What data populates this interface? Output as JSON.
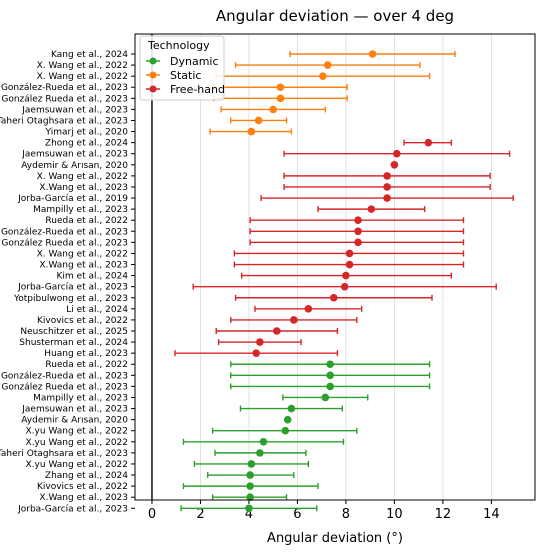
{
  "chart_data": {
    "type": "forest",
    "title": "Angular deviation — over 4 deg",
    "xlabel": "Angular deviation (°)",
    "ylabel": "",
    "xlim": [
      -0.7,
      15.8
    ],
    "xticks": [
      0,
      2,
      4,
      6,
      8,
      10,
      12,
      14
    ],
    "grid": "vertical",
    "reference_line_x": 0,
    "legend": {
      "title": "Technology",
      "placement": "top-left",
      "entries": [
        {
          "name": "Dynamic",
          "color": "#2ca02c"
        },
        {
          "name": "Static",
          "color": "#ff7f0e"
        },
        {
          "name": "Free-hand",
          "color": "#d62728"
        }
      ]
    },
    "series": [
      {
        "name": "Static",
        "color": "#ff7f0e",
        "points": [
          {
            "label": "Kang et al., 2024",
            "value": 9.1,
            "low": 5.7,
            "high": 12.5
          },
          {
            "label": "X. Wang et al., 2022",
            "value": 7.25,
            "low": 3.45,
            "high": 11.05
          },
          {
            "label": "X. Wang et al., 2022",
            "value": 7.05,
            "low": 2.65,
            "high": 11.45
          },
          {
            "label": "González-Rueda et al., 2023",
            "value": 5.3,
            "low": 2.55,
            "high": 8.05
          },
          {
            "label": "González Rueda et al., 2023",
            "value": 5.3,
            "low": 2.55,
            "high": 8.05
          },
          {
            "label": "Jaemsuwan et al., 2023",
            "value": 5.0,
            "low": 2.85,
            "high": 7.15
          },
          {
            "label": "Taheri Otaghsara et al., 2023",
            "value": 4.4,
            "low": 3.25,
            "high": 5.55
          },
          {
            "label": "Yimarj et al., 2020",
            "value": 4.1,
            "low": 2.4,
            "high": 5.75
          }
        ]
      },
      {
        "name": "Free-hand",
        "color": "#d62728",
        "points": [
          {
            "label": "Zhong et al., 2024",
            "value": 11.4,
            "low": 10.4,
            "high": 12.35
          },
          {
            "label": "Jaemsuwan et al., 2023",
            "value": 10.1,
            "low": 5.45,
            "high": 14.75
          },
          {
            "label": "Aydemir & Arısan, 2020",
            "value": 10.0,
            "low": 10.0,
            "high": 10.0
          },
          {
            "label": "X. Wang et al., 2022",
            "value": 9.7,
            "low": 5.45,
            "high": 13.95
          },
          {
            "label": "X.Wang et al., 2023",
            "value": 9.7,
            "low": 5.45,
            "high": 13.95
          },
          {
            "label": "Jorba-García et al., 2019",
            "value": 9.7,
            "low": 4.5,
            "high": 14.9
          },
          {
            "label": "Mampilly et al., 2023",
            "value": 9.05,
            "low": 6.85,
            "high": 11.25
          },
          {
            "label": "Rueda et al., 2022",
            "value": 8.5,
            "low": 4.05,
            "high": 12.85
          },
          {
            "label": "González-Rueda et al., 2023",
            "value": 8.5,
            "low": 4.05,
            "high": 12.85
          },
          {
            "label": "González Rueda et al., 2023",
            "value": 8.5,
            "low": 4.05,
            "high": 12.85
          },
          {
            "label": "X. Wang et al., 2022",
            "value": 8.15,
            "low": 3.4,
            "high": 12.85
          },
          {
            "label": "X.Wang et al., 2023",
            "value": 8.15,
            "low": 3.4,
            "high": 12.85
          },
          {
            "label": "Kim et al., 2024",
            "value": 8.0,
            "low": 3.7,
            "high": 12.35
          },
          {
            "label": "Jorba-García et al., 2023",
            "value": 7.95,
            "low": 1.7,
            "high": 14.2
          },
          {
            "label": "Yotpibulwong et al., 2023",
            "value": 7.5,
            "low": 3.45,
            "high": 11.55
          },
          {
            "label": "Li et al., 2024",
            "value": 6.45,
            "low": 4.25,
            "high": 8.65
          },
          {
            "label": "Kivovics et al., 2022",
            "value": 5.85,
            "low": 3.25,
            "high": 8.45
          },
          {
            "label": "Neuschitzer et al., 2025",
            "value": 5.15,
            "low": 2.65,
            "high": 7.65
          },
          {
            "label": "Shusterman et al., 2024",
            "value": 4.45,
            "low": 2.75,
            "high": 6.15
          },
          {
            "label": "Huang et al., 2023",
            "value": 4.3,
            "low": 0.95,
            "high": 7.65
          }
        ]
      },
      {
        "name": "Dynamic",
        "color": "#2ca02c",
        "points": [
          {
            "label": "Rueda et al., 2022",
            "value": 7.35,
            "low": 3.25,
            "high": 11.45
          },
          {
            "label": "González-Rueda et al., 2023",
            "value": 7.35,
            "low": 3.25,
            "high": 11.45
          },
          {
            "label": "González Rueda et al., 2023",
            "value": 7.35,
            "low": 3.25,
            "high": 11.45
          },
          {
            "label": "Mampilly et al., 2023",
            "value": 7.15,
            "low": 5.4,
            "high": 8.9
          },
          {
            "label": "Jaemsuwan et al., 2023",
            "value": 5.75,
            "low": 3.65,
            "high": 7.85
          },
          {
            "label": "Aydemir & Arısan, 2020",
            "value": 5.6,
            "low": 5.6,
            "high": 5.6
          },
          {
            "label": "X.yu Wang et al., 2022",
            "value": 5.5,
            "low": 2.5,
            "high": 8.45
          },
          {
            "label": "X.yu Wang et al., 2022",
            "value": 4.6,
            "low": 1.3,
            "high": 7.9
          },
          {
            "label": "Taheri Otaghsara et al., 2023",
            "value": 4.45,
            "low": 2.6,
            "high": 6.35
          },
          {
            "label": "X.yu Wang et al., 2022",
            "value": 4.1,
            "low": 1.75,
            "high": 6.45
          },
          {
            "label": "Zhang et al., 2024",
            "value": 4.05,
            "low": 2.3,
            "high": 5.85
          },
          {
            "label": "Kivovics et al., 2022",
            "value": 4.05,
            "low": 1.3,
            "high": 6.85
          },
          {
            "label": "X.Wang et al., 2023",
            "value": 4.05,
            "low": 2.5,
            "high": 5.55
          },
          {
            "label": "Jorba-García et al., 2023",
            "value": 4.0,
            "low": 1.2,
            "high": 6.8
          }
        ]
      }
    ]
  }
}
